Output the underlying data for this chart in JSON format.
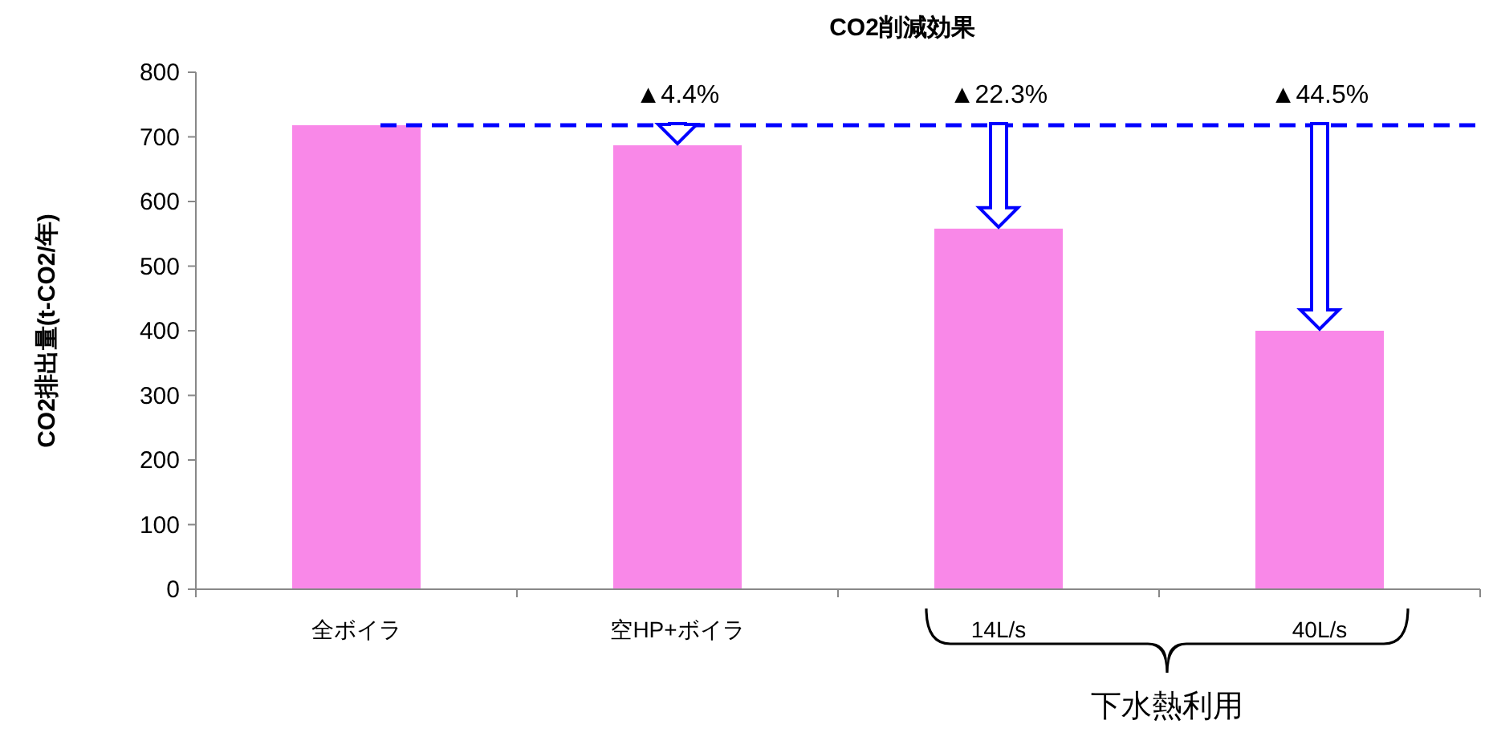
{
  "chart_data": {
    "type": "bar",
    "title": "CO2削減効果",
    "ylabel": "CO2排出量(t-CO2/年)",
    "categories": [
      "全ボイラ",
      "空HP+ボイラ",
      "14L/s",
      "40L/s"
    ],
    "values": [
      718,
      687,
      558,
      400
    ],
    "color": "#f988e8",
    "ylim": [
      0,
      800
    ],
    "yticks": [
      0,
      100,
      200,
      300,
      400,
      500,
      600,
      700,
      800
    ],
    "grid": false,
    "ref_lines": [
      {
        "axis": "y",
        "value": 718,
        "color": "#0000ff",
        "line_style": "dashed"
      }
    ],
    "annotations": [
      "▲4.4%",
      "▲22.3%",
      "▲44.5%",
      "下水熱利用"
    ]
  }
}
